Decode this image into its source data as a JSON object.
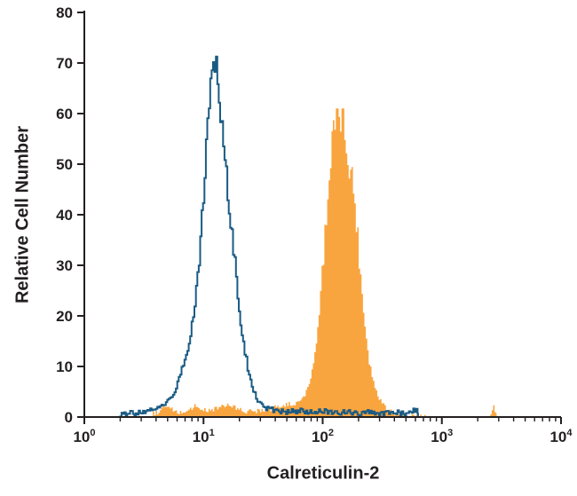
{
  "chart_data": {
    "type": "area",
    "subtype": "flow-cytometry-overlay-histogram",
    "title": "",
    "xlabel": "Calreticulin-2",
    "ylabel": "Relative Cell Number",
    "x_scale": "log10",
    "xlim_log": [
      0,
      4
    ],
    "ylim": [
      0,
      80
    ],
    "x_tick_base": "10",
    "x_tick_exponents": [
      0,
      1,
      2,
      3,
      4
    ],
    "y_ticks": [
      0,
      10,
      20,
      30,
      40,
      50,
      60,
      70,
      80
    ],
    "grid": false,
    "legend": "none",
    "axis_color": "#231f20",
    "sample_step": 0.012,
    "series": [
      {
        "name": "orange-filled-histogram",
        "color": "#F9A53F",
        "fill": true,
        "max": 61,
        "peak_log10": 2.13,
        "peak_value": 61,
        "jitter": {
          "rel": 0.08,
          "abs": 0.5
        },
        "points": [
          [
            0.55,
            0.3
          ],
          [
            0.62,
            1.0
          ],
          [
            0.68,
            2.2
          ],
          [
            0.72,
            1.5
          ],
          [
            0.78,
            0.8
          ],
          [
            0.85,
            1.2
          ],
          [
            0.92,
            2.2
          ],
          [
            0.98,
            1.5
          ],
          [
            1.05,
            1.2
          ],
          [
            1.12,
            2.0
          ],
          [
            1.2,
            2.4
          ],
          [
            1.28,
            1.6
          ],
          [
            1.35,
            1.0
          ],
          [
            1.45,
            1.3
          ],
          [
            1.55,
            1.6
          ],
          [
            1.62,
            2.0
          ],
          [
            1.7,
            2.4
          ],
          [
            1.78,
            2.8
          ],
          [
            1.84,
            4
          ],
          [
            1.9,
            8
          ],
          [
            1.95,
            16
          ],
          [
            2.0,
            32
          ],
          [
            2.05,
            48
          ],
          [
            2.09,
            57
          ],
          [
            2.13,
            60
          ],
          [
            2.17,
            58
          ],
          [
            2.21,
            52
          ],
          [
            2.26,
            44
          ],
          [
            2.3,
            32
          ],
          [
            2.35,
            18
          ],
          [
            2.4,
            9
          ],
          [
            2.45,
            4.5
          ],
          [
            2.5,
            2.5
          ],
          [
            2.56,
            1.2
          ],
          [
            2.62,
            0.6
          ],
          [
            2.7,
            0.2
          ],
          [
            2.9,
            0.0
          ],
          [
            3.4,
            0.0
          ],
          [
            3.43,
            1.8
          ],
          [
            3.46,
            0.0
          ]
        ]
      },
      {
        "name": "blue-outline-histogram",
        "color": "#1A5B84",
        "fill": false,
        "max": 72.5,
        "peak_log10": 1.09,
        "peak_value": 72.5,
        "jitter": {
          "rel": 0.05,
          "abs": 0.5
        },
        "points": [
          [
            0.3,
            0.4
          ],
          [
            0.4,
            0.8
          ],
          [
            0.5,
            1.0
          ],
          [
            0.58,
            1.5
          ],
          [
            0.65,
            2.0
          ],
          [
            0.7,
            3.0
          ],
          [
            0.75,
            5.0
          ],
          [
            0.8,
            8.0
          ],
          [
            0.85,
            12
          ],
          [
            0.9,
            18
          ],
          [
            0.95,
            28
          ],
          [
            1.0,
            45
          ],
          [
            1.04,
            62
          ],
          [
            1.07,
            70
          ],
          [
            1.09,
            72
          ],
          [
            1.12,
            66
          ],
          [
            1.15,
            58
          ],
          [
            1.18,
            50
          ],
          [
            1.22,
            40
          ],
          [
            1.26,
            30
          ],
          [
            1.3,
            20
          ],
          [
            1.34,
            13
          ],
          [
            1.38,
            8
          ],
          [
            1.42,
            5
          ],
          [
            1.46,
            3
          ],
          [
            1.5,
            2
          ],
          [
            1.6,
            1.3
          ],
          [
            1.7,
            1.0
          ],
          [
            1.8,
            1.2
          ],
          [
            1.9,
            0.9
          ],
          [
            2.0,
            1.3
          ],
          [
            2.1,
            0.8
          ],
          [
            2.2,
            1.1
          ],
          [
            2.3,
            0.7
          ],
          [
            2.4,
            1.0
          ],
          [
            2.5,
            0.6
          ],
          [
            2.6,
            0.9
          ],
          [
            2.7,
            0.7
          ],
          [
            2.78,
            1.4
          ],
          [
            2.8,
            0.0
          ]
        ]
      }
    ]
  }
}
